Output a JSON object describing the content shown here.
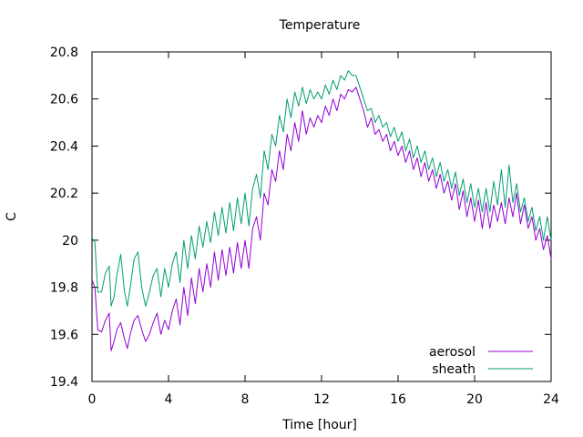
{
  "chart_data": {
    "type": "line",
    "title": "Temperature",
    "xlabel": "Time [hour]",
    "ylabel": "C",
    "xlim": [
      0,
      24
    ],
    "ylim": [
      19.4,
      20.8
    ],
    "xticks": [
      0,
      4,
      8,
      12,
      16,
      20,
      24
    ],
    "yticks": [
      19.4,
      19.6,
      19.8,
      20,
      20.2,
      20.4,
      20.6,
      20.8
    ],
    "xtick_labels": [
      "0",
      "4",
      "8",
      "12",
      "16",
      "20",
      "24"
    ],
    "ytick_labels": [
      "19.4",
      "19.6",
      "19.8",
      "20",
      "20.2",
      "20.4",
      "20.6",
      "20.8"
    ],
    "grid": false,
    "legend_position": "bottom-right",
    "series": [
      {
        "name": "aerosol",
        "color": "#9400d3",
        "x": [
          0,
          0.15,
          0.3,
          0.5,
          0.7,
          0.9,
          1.0,
          1.15,
          1.3,
          1.5,
          1.7,
          1.85,
          2.0,
          2.2,
          2.4,
          2.6,
          2.8,
          3.0,
          3.2,
          3.4,
          3.6,
          3.8,
          4.0,
          4.2,
          4.4,
          4.6,
          4.8,
          5.0,
          5.2,
          5.4,
          5.6,
          5.8,
          6.0,
          6.2,
          6.4,
          6.6,
          6.8,
          7.0,
          7.2,
          7.4,
          7.6,
          7.8,
          8.0,
          8.2,
          8.4,
          8.6,
          8.8,
          9.0,
          9.2,
          9.4,
          9.6,
          9.8,
          10.0,
          10.2,
          10.4,
          10.6,
          10.8,
          11.0,
          11.2,
          11.4,
          11.6,
          11.8,
          12.0,
          12.2,
          12.4,
          12.6,
          12.8,
          13.0,
          13.2,
          13.4,
          13.6,
          13.8,
          14.0,
          14.2,
          14.4,
          14.6,
          14.8,
          15.0,
          15.2,
          15.4,
          15.6,
          15.8,
          16.0,
          16.2,
          16.4,
          16.6,
          16.8,
          17.0,
          17.2,
          17.4,
          17.6,
          17.8,
          18.0,
          18.2,
          18.4,
          18.6,
          18.8,
          19.0,
          19.2,
          19.4,
          19.6,
          19.8,
          20.0,
          20.2,
          20.4,
          20.6,
          20.8,
          21.0,
          21.2,
          21.4,
          21.6,
          21.8,
          22.0,
          22.2,
          22.4,
          22.6,
          22.8,
          23.0,
          23.2,
          23.4,
          23.6,
          23.8,
          24.0
        ],
        "y": [
          19.83,
          19.8,
          19.62,
          19.61,
          19.66,
          19.69,
          19.53,
          19.57,
          19.62,
          19.65,
          19.58,
          19.54,
          19.6,
          19.66,
          19.68,
          19.62,
          19.57,
          19.6,
          19.65,
          19.69,
          19.6,
          19.66,
          19.62,
          19.7,
          19.75,
          19.64,
          19.8,
          19.68,
          19.84,
          19.73,
          19.88,
          19.78,
          19.9,
          19.8,
          19.95,
          19.83,
          19.96,
          19.85,
          19.97,
          19.86,
          19.99,
          19.88,
          20.0,
          19.88,
          20.05,
          20.1,
          20.0,
          20.2,
          20.15,
          20.3,
          20.25,
          20.38,
          20.3,
          20.45,
          20.38,
          20.5,
          20.42,
          20.55,
          20.45,
          20.52,
          20.48,
          20.53,
          20.5,
          20.57,
          20.53,
          20.6,
          20.55,
          20.62,
          20.6,
          20.64,
          20.63,
          20.65,
          20.6,
          20.55,
          20.48,
          20.52,
          20.45,
          20.47,
          20.42,
          20.45,
          20.38,
          20.42,
          20.36,
          20.4,
          20.33,
          20.38,
          20.3,
          20.35,
          20.27,
          20.33,
          20.25,
          20.3,
          20.22,
          20.28,
          20.2,
          20.25,
          20.17,
          20.24,
          20.13,
          20.21,
          20.1,
          20.18,
          20.08,
          20.17,
          20.05,
          20.16,
          20.05,
          20.15,
          20.08,
          20.16,
          20.07,
          20.18,
          20.1,
          20.2,
          20.07,
          20.15,
          20.05,
          20.1,
          20.0,
          20.05,
          19.96,
          20.02,
          19.92
        ]
      },
      {
        "name": "sheath",
        "color": "#009e73",
        "x": [
          0,
          0.15,
          0.3,
          0.5,
          0.7,
          0.9,
          1.0,
          1.15,
          1.3,
          1.5,
          1.7,
          1.85,
          2.0,
          2.2,
          2.4,
          2.6,
          2.8,
          3.0,
          3.2,
          3.4,
          3.6,
          3.8,
          4.0,
          4.2,
          4.4,
          4.6,
          4.8,
          5.0,
          5.2,
          5.4,
          5.6,
          5.8,
          6.0,
          6.2,
          6.4,
          6.6,
          6.8,
          7.0,
          7.2,
          7.4,
          7.6,
          7.8,
          8.0,
          8.2,
          8.4,
          8.6,
          8.8,
          9.0,
          9.2,
          9.4,
          9.6,
          9.8,
          10.0,
          10.2,
          10.4,
          10.6,
          10.8,
          11.0,
          11.2,
          11.4,
          11.6,
          11.8,
          12.0,
          12.2,
          12.4,
          12.6,
          12.8,
          13.0,
          13.2,
          13.4,
          13.6,
          13.8,
          14.0,
          14.2,
          14.4,
          14.6,
          14.8,
          15.0,
          15.2,
          15.4,
          15.6,
          15.8,
          16.0,
          16.2,
          16.4,
          16.6,
          16.8,
          17.0,
          17.2,
          17.4,
          17.6,
          17.8,
          18.0,
          18.2,
          18.4,
          18.6,
          18.8,
          19.0,
          19.2,
          19.4,
          19.6,
          19.8,
          20.0,
          20.2,
          20.4,
          20.6,
          20.8,
          21.0,
          21.2,
          21.4,
          21.6,
          21.8,
          22.0,
          22.2,
          22.4,
          22.6,
          22.8,
          23.0,
          23.2,
          23.4,
          23.6,
          23.8,
          24.0
        ],
        "y": [
          20.01,
          19.99,
          19.78,
          19.78,
          19.86,
          19.89,
          19.72,
          19.76,
          19.85,
          19.94,
          19.78,
          19.72,
          19.8,
          19.92,
          19.95,
          19.8,
          19.72,
          19.78,
          19.85,
          19.88,
          19.76,
          19.88,
          19.8,
          19.9,
          19.95,
          19.82,
          20.0,
          19.88,
          20.02,
          19.92,
          20.06,
          19.97,
          20.08,
          19.99,
          20.12,
          20.02,
          20.14,
          20.03,
          20.16,
          20.04,
          20.18,
          20.07,
          20.2,
          20.06,
          20.22,
          20.28,
          20.18,
          20.38,
          20.3,
          20.45,
          20.4,
          20.53,
          20.46,
          20.6,
          20.52,
          20.63,
          20.57,
          20.65,
          20.58,
          20.64,
          20.6,
          20.63,
          20.6,
          20.66,
          20.62,
          20.68,
          20.64,
          20.7,
          20.68,
          20.72,
          20.7,
          20.7,
          20.65,
          20.6,
          20.55,
          20.56,
          20.5,
          20.53,
          20.48,
          20.5,
          20.44,
          20.48,
          20.42,
          20.46,
          20.38,
          20.43,
          20.35,
          20.4,
          20.33,
          20.38,
          20.3,
          20.35,
          20.27,
          20.33,
          20.25,
          20.3,
          20.22,
          20.29,
          20.19,
          20.26,
          20.16,
          20.24,
          20.14,
          20.22,
          20.12,
          20.22,
          20.12,
          20.25,
          20.15,
          20.3,
          20.14,
          20.32,
          20.16,
          20.24,
          20.12,
          20.18,
          20.08,
          20.14,
          20.04,
          20.1,
          20.0,
          20.1,
          20.0
        ]
      }
    ]
  }
}
